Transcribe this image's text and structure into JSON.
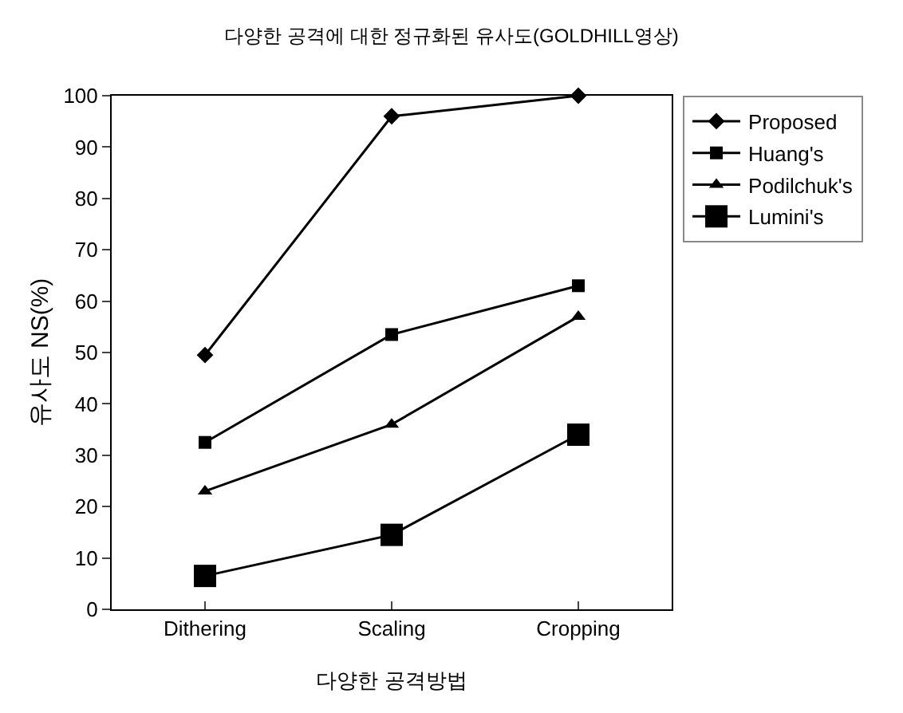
{
  "chart_data": {
    "type": "line",
    "title": "다양한 공격에 대한 정규화된 유사도(GOLDHILL영상)",
    "xlabel": "다양한 공격방법",
    "ylabel": "유사도 NS(%)",
    "categories": [
      "Dithering",
      "Scaling",
      "Cropping"
    ],
    "series": [
      {
        "name": "Proposed",
        "color": "#000000",
        "marker": "diamond",
        "values": [
          49.5,
          96,
          100
        ]
      },
      {
        "name": "Huang's",
        "color": "#000000",
        "marker": "square",
        "values": [
          32.5,
          53.5,
          63
        ]
      },
      {
        "name": "Podilchuk's",
        "color": "#000000",
        "marker": "triangle",
        "values": [
          23,
          36,
          57
        ]
      },
      {
        "name": "Lumini's",
        "color": "#000000",
        "marker": "square",
        "values": [
          6.5,
          14.5,
          34
        ]
      }
    ],
    "ylim": [
      0,
      100
    ],
    "yticks": [
      0,
      10,
      20,
      30,
      40,
      50,
      60,
      70,
      80,
      90,
      100
    ],
    "grid": false,
    "legend": "top right",
    "line_style": "solid"
  }
}
